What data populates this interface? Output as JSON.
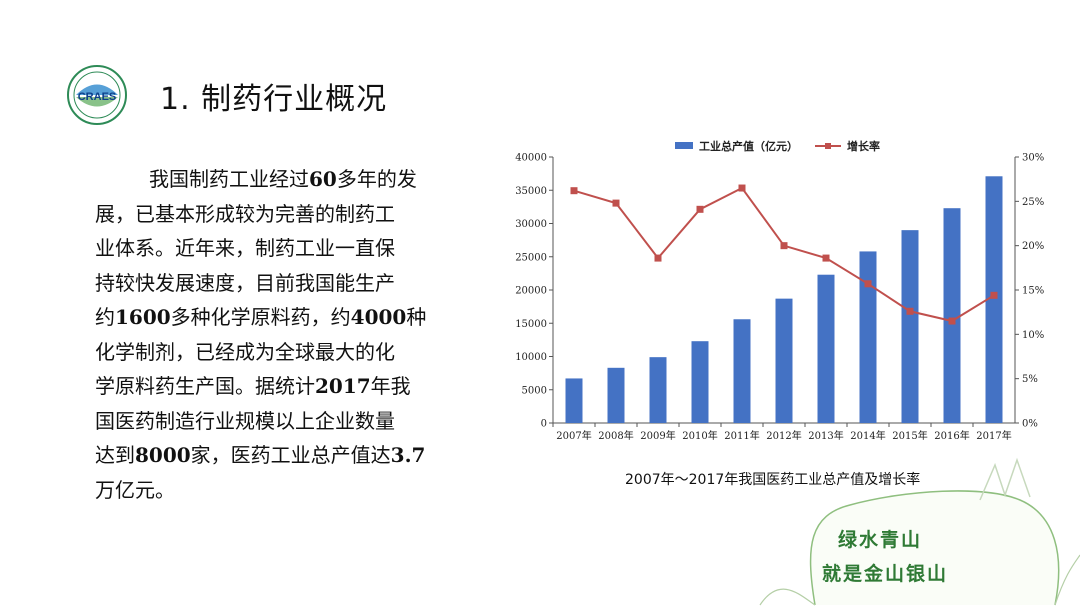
{
  "slide": {
    "title": "1. 制药行业概况",
    "logo_text": "CRAES",
    "paragraph_lines": [
      "我国制药工业经过60多年的发",
      "展，已基本形成较为完善的制药工",
      "业体系。近年来，制药工业一直保",
      "持较快发展速度，目前我国能生产",
      "约1600多种化学原料药，约4000种",
      "化学制剂，已经成为全球最大的化",
      "学原料药生产国。据统计2017年我",
      "国医药制造行业规模以上企业数量",
      "达到8000家，医药工业总产值达3.7",
      "万亿元。"
    ],
    "caption": "2007年～2017年我国医药工业总产值及增长率",
    "slogan": [
      "绿水青山",
      "就是金山银山"
    ]
  },
  "colors": {
    "bar": "#4472c4",
    "line": "#c0504d",
    "slogan": "#2f7a35"
  },
  "chart_data": {
    "type": "bar",
    "categories": [
      "2007年",
      "2008年",
      "2009年",
      "2010年",
      "2011年",
      "2012年",
      "2013年",
      "2014年",
      "2015年",
      "2016年",
      "2017年"
    ],
    "series": [
      {
        "name": "工业总产值（亿元）",
        "type": "bar",
        "axis": "left",
        "values": [
          6700,
          8300,
          9900,
          12300,
          15600,
          18700,
          22300,
          25800,
          29000,
          32300,
          37100
        ]
      },
      {
        "name": "增长率",
        "type": "line",
        "axis": "right",
        "values": [
          26.2,
          24.8,
          18.6,
          24.1,
          26.5,
          20.0,
          18.6,
          15.7,
          12.6,
          11.5,
          14.4
        ]
      }
    ],
    "ylim": [
      0,
      40000
    ],
    "yticks": [
      "0",
      "5000",
      "10000",
      "15000",
      "20000",
      "25000",
      "30000",
      "35000",
      "40000"
    ],
    "y2lim": [
      0,
      30
    ],
    "y2ticks": [
      "0%",
      "5%",
      "10%",
      "15%",
      "20%",
      "25%",
      "30%"
    ],
    "legend_position": "top",
    "grid": false
  }
}
